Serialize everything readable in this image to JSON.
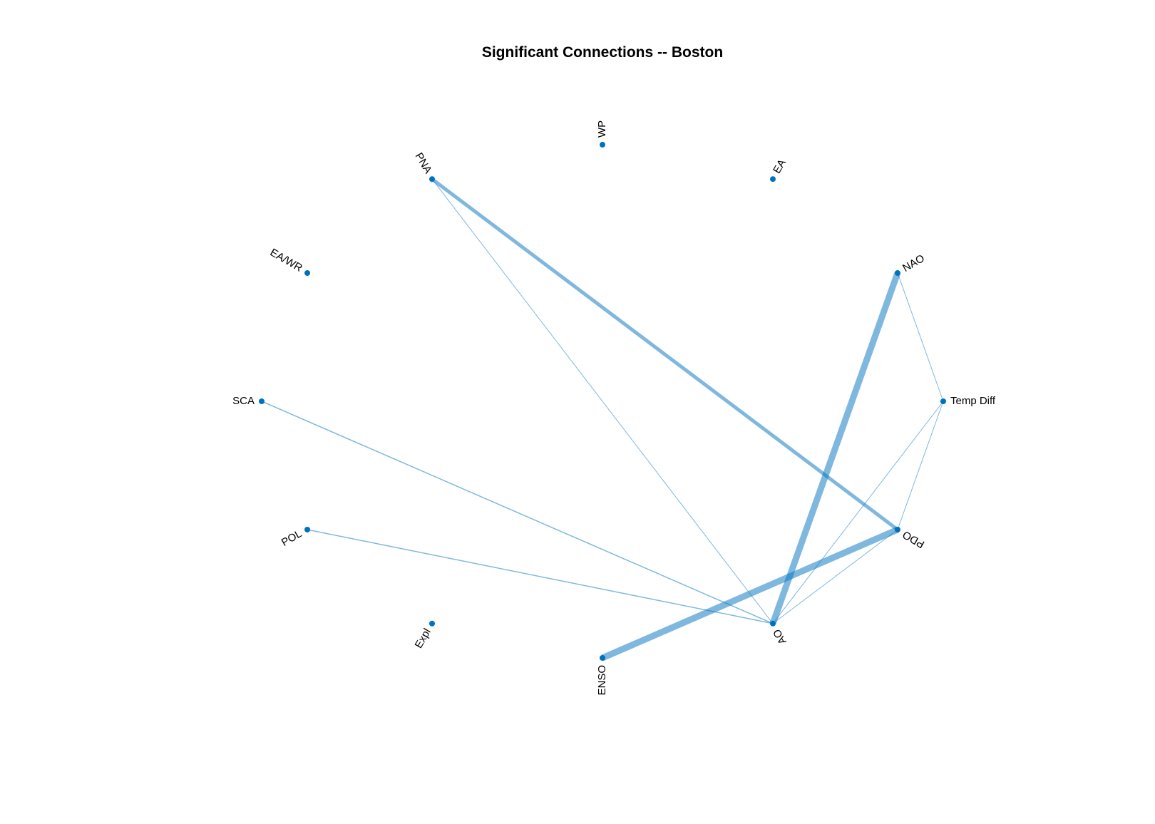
{
  "title": "Significant Connections -- Boston",
  "colors": {
    "node": "#0072bd",
    "edge": "#0072bd",
    "text": "#000000",
    "background": "#ffffff"
  },
  "graph": {
    "layout": "circle",
    "nodes": [
      {
        "id": "temp-diff",
        "label": "Temp Diff"
      },
      {
        "id": "nao",
        "label": "NAO"
      },
      {
        "id": "ea",
        "label": "EA"
      },
      {
        "id": "wp",
        "label": "WP"
      },
      {
        "id": "pna",
        "label": "PNA"
      },
      {
        "id": "eawr",
        "label": "EA/WR"
      },
      {
        "id": "sca",
        "label": "SCA"
      },
      {
        "id": "pol",
        "label": "POL"
      },
      {
        "id": "expl",
        "label": "Expl"
      },
      {
        "id": "enso",
        "label": "ENSO"
      },
      {
        "id": "ao",
        "label": "AO"
      },
      {
        "id": "pdo",
        "label": "PDO"
      }
    ],
    "edges": [
      {
        "source": "pna",
        "target": "pdo",
        "weight": 5
      },
      {
        "source": "pna",
        "target": "ao",
        "weight": 1
      },
      {
        "source": "nao",
        "target": "ao",
        "weight": 9
      },
      {
        "source": "nao",
        "target": "temp-diff",
        "weight": 1
      },
      {
        "source": "sca",
        "target": "ao",
        "weight": 1.5
      },
      {
        "source": "pol",
        "target": "ao",
        "weight": 1.5
      },
      {
        "source": "enso",
        "target": "pdo",
        "weight": 9
      },
      {
        "source": "temp-diff",
        "target": "ao",
        "weight": 1
      },
      {
        "source": "temp-diff",
        "target": "pdo",
        "weight": 1
      },
      {
        "source": "pdo",
        "target": "ao",
        "weight": 1
      }
    ]
  }
}
